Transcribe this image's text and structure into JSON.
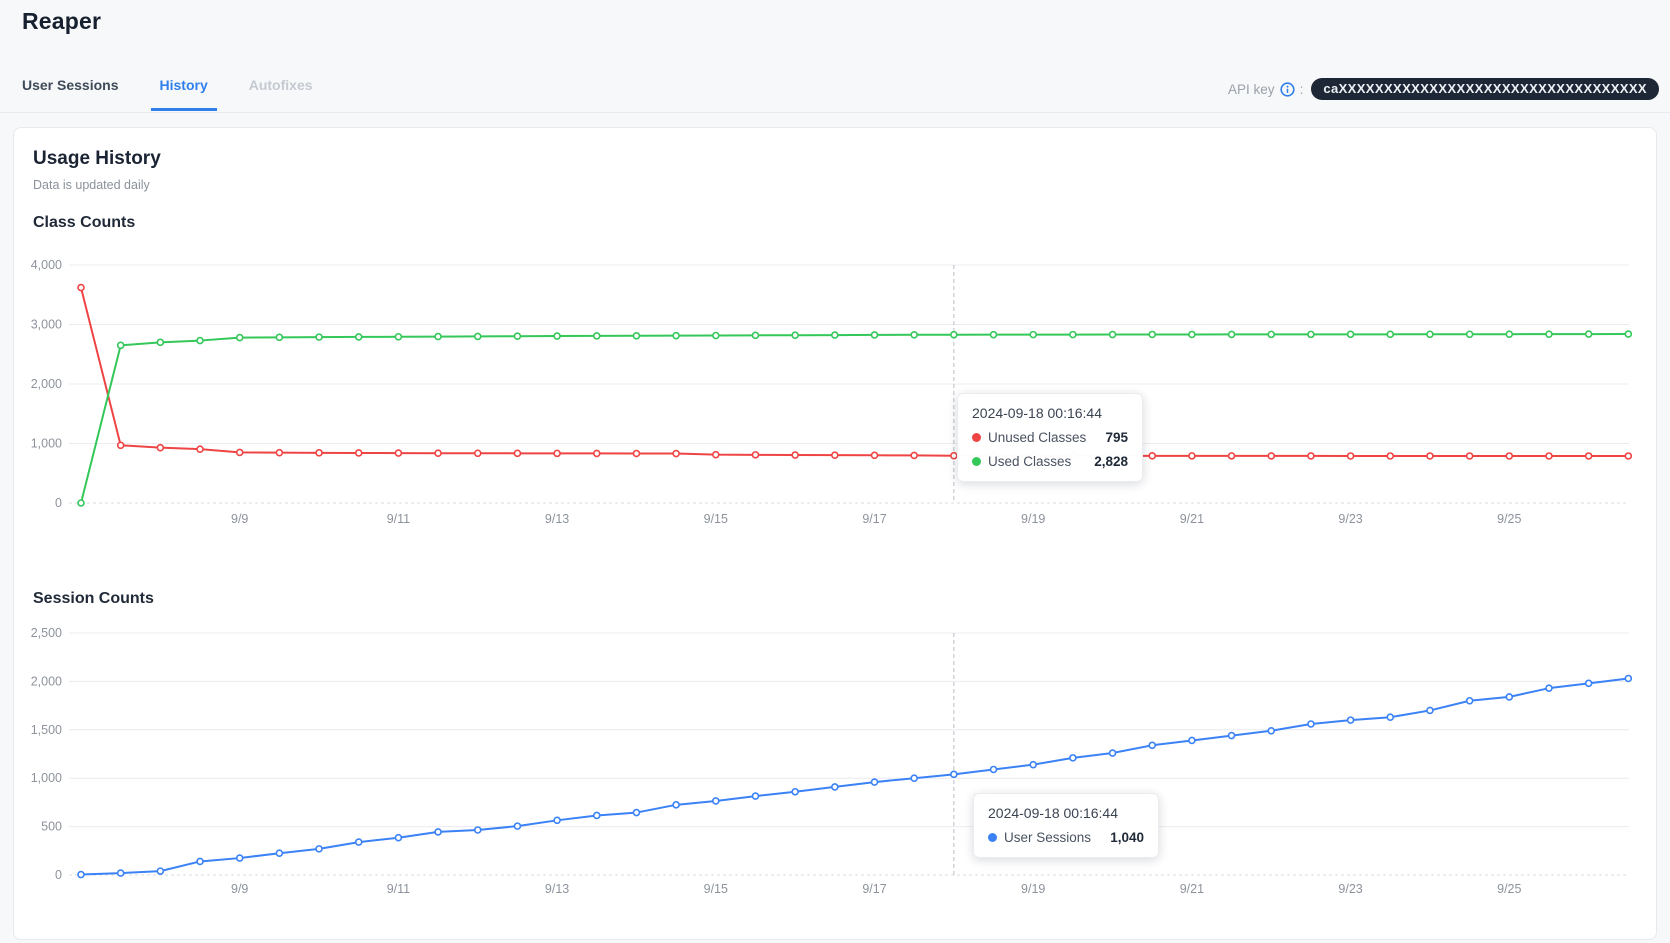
{
  "page": {
    "title": "Reaper"
  },
  "tabs": {
    "user_sessions": "User Sessions",
    "history": "History",
    "autofixes": "Autofixes"
  },
  "api_key": {
    "label": "API key",
    "separator": ":",
    "value": "caXXXXXXXXXXXXXXXXXXXXXXXXXXXXXXXXXX",
    "info_icon_color": "#2f80ed"
  },
  "card": {
    "title": "Usage History",
    "subtitle": "Data is updated daily"
  },
  "chart_data": [
    {
      "type": "line",
      "title": "Class Counts",
      "xlabel": "",
      "ylabel": "",
      "ylim": [
        0,
        4000
      ],
      "grid": true,
      "x_tick_labels": [
        "9/9",
        "9/11",
        "9/13",
        "9/15",
        "9/17",
        "9/19",
        "9/21",
        "9/23",
        "9/25"
      ],
      "x_note": "data points every 12h from 9/7 00:16 to 9/26 12:16",
      "y_ticks": [
        0,
        1000,
        2000,
        3000,
        4000
      ],
      "y_tick_labels": [
        "0",
        "1,000",
        "2,000",
        "3,000",
        "4,000"
      ],
      "series": [
        {
          "name": "Unused Classes",
          "color": "#ef4444",
          "values": [
            3620,
            970,
            930,
            905,
            850,
            846,
            843,
            841,
            839,
            837,
            836,
            835,
            834,
            833,
            832,
            831,
            812,
            809,
            806,
            804,
            802,
            800,
            795,
            795,
            794,
            794,
            793,
            793,
            792,
            792,
            791,
            791,
            790,
            790,
            790,
            790,
            790,
            790,
            790,
            790
          ]
        },
        {
          "name": "Used Classes",
          "color": "#34c759",
          "values": [
            0,
            2650,
            2700,
            2730,
            2780,
            2784,
            2788,
            2791,
            2794,
            2797,
            2800,
            2803,
            2806,
            2808,
            2810,
            2812,
            2815,
            2818,
            2820,
            2822,
            2825,
            2827,
            2828,
            2829,
            2830,
            2830,
            2831,
            2832,
            2832,
            2833,
            2834,
            2834,
            2835,
            2835,
            2836,
            2836,
            2837,
            2838,
            2839,
            2840
          ]
        }
      ],
      "tooltip": {
        "date": "2024-09-18 00:16:44",
        "rows": [
          {
            "name": "Unused Classes",
            "value": "795",
            "color": "#ef4444"
          },
          {
            "name": "Used Classes",
            "value": "2,828",
            "color": "#34c759"
          }
        ],
        "cursor_point_index": 22
      }
    },
    {
      "type": "line",
      "title": "Session Counts",
      "xlabel": "",
      "ylabel": "",
      "ylim": [
        0,
        2500
      ],
      "grid": true,
      "x_tick_labels": [
        "9/9",
        "9/11",
        "9/13",
        "9/15",
        "9/17",
        "9/19",
        "9/21",
        "9/23",
        "9/25"
      ],
      "x_note": "data points every 12h from 9/7 00:16 to 9/26 12:16",
      "y_ticks": [
        0,
        500,
        1000,
        1500,
        2000,
        2500
      ],
      "y_tick_labels": [
        "0",
        "500",
        "1,000",
        "1,500",
        "2,000",
        "2,500"
      ],
      "series": [
        {
          "name": "User Sessions",
          "color": "#3b82f6",
          "values": [
            5,
            20,
            40,
            140,
            175,
            225,
            270,
            340,
            385,
            445,
            465,
            505,
            565,
            615,
            645,
            725,
            765,
            815,
            860,
            910,
            960,
            1000,
            1040,
            1090,
            1140,
            1210,
            1260,
            1340,
            1390,
            1440,
            1490,
            1560,
            1600,
            1630,
            1700,
            1800,
            1840,
            1930,
            1980,
            2030
          ]
        }
      ],
      "tooltip": {
        "date": "2024-09-18 00:16:44",
        "rows": [
          {
            "name": "User Sessions",
            "value": "1,040",
            "color": "#3b82f6"
          }
        ],
        "cursor_point_index": 22
      }
    }
  ]
}
